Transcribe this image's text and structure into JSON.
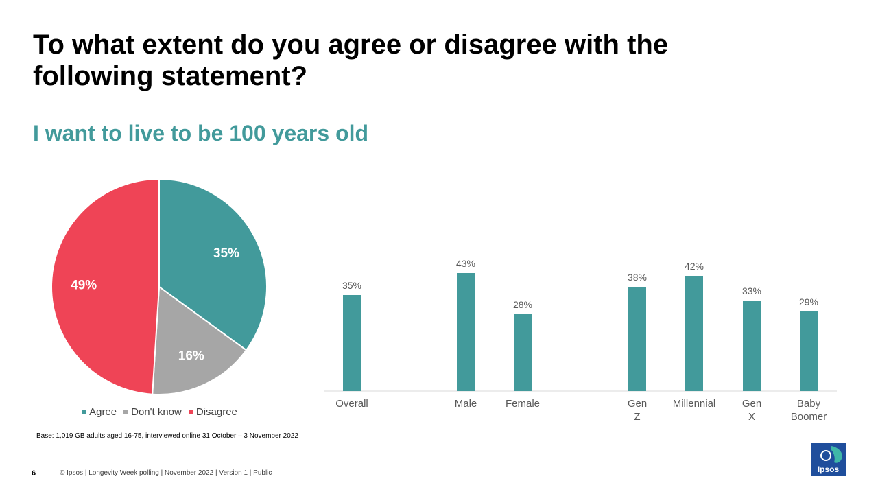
{
  "title": "To what extent do you agree or disagree with the following statement?",
  "subtitle": "I want to live to be 100 years old",
  "colors": {
    "agree": "#429A9B",
    "dont_know": "#A6A6A6",
    "disagree": "#EF4456",
    "logo": "#1F4E9C"
  },
  "chart_data": [
    {
      "type": "pie",
      "labels": [
        "Agree",
        "Don't know",
        "Disagree"
      ],
      "values": [
        35,
        16,
        49
      ],
      "value_labels": [
        "35%",
        "16%",
        "49%"
      ],
      "colors": [
        "#429A9B",
        "#A6A6A6",
        "#EF4456"
      ],
      "legend_position": "bottom"
    },
    {
      "type": "bar",
      "categories": [
        "Overall",
        "Male",
        "Female",
        "Gen Z",
        "Millennial",
        "Gen X",
        "Baby Boomer"
      ],
      "values": [
        35,
        43,
        28,
        38,
        42,
        33,
        29
      ],
      "value_labels": [
        "35%",
        "43%",
        "28%",
        "38%",
        "42%",
        "33%",
        "29%"
      ],
      "color": "#429A9B",
      "ylim": [
        0,
        50
      ]
    }
  ],
  "legend": {
    "agree": "Agree",
    "dont_know": "Don't know",
    "disagree": "Disagree"
  },
  "base_note": "Base: 1,019 GB adults aged 16-75, interviewed online 31 October – 3 November 2022",
  "page_number": "6",
  "footer": "© Ipsos | Longevity Week polling | November 2022 | Version 1 | Public",
  "logo_text": "Ipsos"
}
